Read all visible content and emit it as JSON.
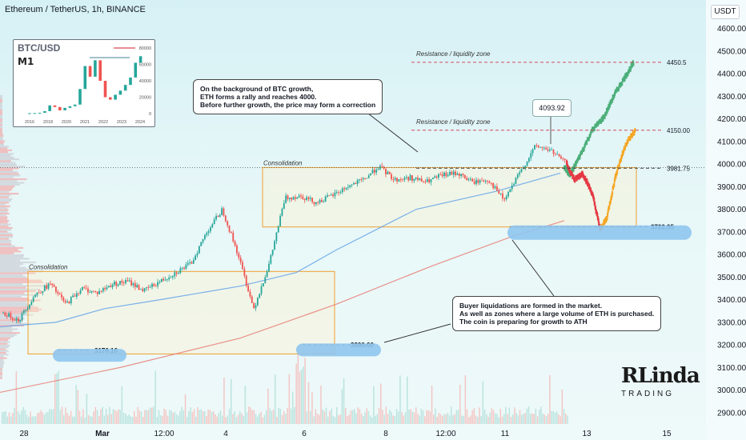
{
  "header": {
    "title": "Ethereum / TetherUS, 1h, BINANCE",
    "currency": "USDT"
  },
  "colors": {
    "up": "#26a69a",
    "down": "#ef5350",
    "green_path": "#4caf7a",
    "red_path": "#e53945",
    "orange_path": "#f5a623",
    "ma_blue": "#5b9ee8",
    "ma_red": "#e8776e",
    "box_border": "#f0a030",
    "level_dash": "#444444",
    "zone_blue": "#8fc5ee",
    "resistance_line": "#d24c5c"
  },
  "labels": {
    "resistance_1": "Resistance / liquidity zone",
    "resistance_2": "Resistance / liquidity zone",
    "consolidation_top": "Consolidation",
    "consolidation_bottom": "Consolidation",
    "peak_value": "4093.92"
  },
  "callouts": {
    "top": [
      "On the background of BTC growth,",
      "ETH forms a rally and reaches 4000.",
      "Before further growth, the price may form a correction"
    ],
    "bottom": [
      "Buyer liquidations are formed in the market.",
      "As well as zones where a large volume of ETH is purchased.",
      "The coin is preparing for growth to ATH"
    ]
  },
  "inset": {
    "title": "BTC/USD",
    "interval": "M1",
    "y_ticks": [
      "80000",
      "60000",
      "40000",
      "20000",
      "0"
    ],
    "x_ticks": [
      "2016",
      "2018",
      "2020",
      "2021",
      "2022",
      "2023",
      "2024"
    ]
  },
  "logo": {
    "main": "RLinda",
    "sub": "TRADING"
  },
  "chart_data": {
    "type": "candlestick",
    "title": "Ethereum / TetherUS, 1h, BINANCE",
    "ylim": [
      2850,
      4620
    ],
    "y_ticks": [
      2900,
      3000,
      3100,
      3200,
      3300,
      3400,
      3500,
      3600,
      3700,
      3800,
      3900,
      4000,
      4100,
      4200,
      4300,
      4400,
      4500,
      4600
    ],
    "x_ticks": [
      "28",
      "Mar",
      "12:00",
      "4",
      "6",
      "8",
      "12:00",
      "11",
      "13",
      "15"
    ],
    "current_price": 3984.56,
    "levels": [
      4450.5,
      4150.0,
      3981.75,
      3722.95,
      3200.0,
      3176.16
    ],
    "price_path": [
      3340,
      3310,
      3420,
      3470,
      3380,
      3450,
      3430,
      3470,
      3480,
      3440,
      3480,
      3520,
      3560,
      3700,
      3800,
      3600,
      3360,
      3560,
      3850,
      3860,
      3830,
      3860,
      3900,
      3930,
      3990,
      3930,
      3940,
      3920,
      3950,
      3960,
      3920,
      3930,
      3840,
      3960,
      4080,
      4060,
      4000
    ],
    "projection_green": [
      3990,
      3950,
      4040,
      4150,
      4210,
      4310,
      4380,
      4450
    ],
    "projection_red_orange": [
      4000,
      3930,
      3960,
      3870,
      3710,
      3760,
      3960,
      4090,
      4150
    ]
  }
}
